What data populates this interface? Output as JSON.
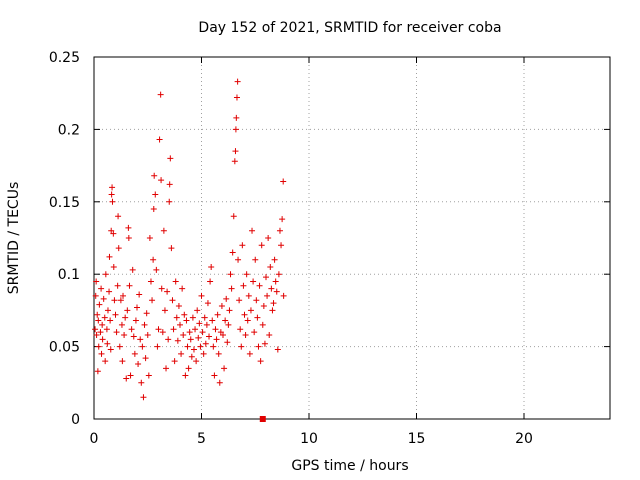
{
  "chart_data": {
    "type": "scatter",
    "title": "Day 152 of 2021, SRMTID for receiver coba",
    "xlabel": "GPS time / hours",
    "ylabel": "SRMTID / TECUs",
    "xlim": [
      0,
      24
    ],
    "ylim": [
      0,
      0.25
    ],
    "xticks": [
      0,
      5,
      10,
      15,
      20
    ],
    "xtick_labels": [
      "0",
      "5",
      "10",
      "15",
      "20"
    ],
    "yticks": [
      0,
      0.05,
      0.1,
      0.15,
      0.2,
      0.25
    ],
    "ytick_labels": [
      "0",
      "0.05",
      "0.1",
      "0.15",
      "0.2",
      "0.25"
    ],
    "grid": true,
    "legend": "none",
    "marker": "+",
    "color": "#e00000",
    "series": [
      {
        "name": "SRMTID",
        "points": [
          [
            0.05,
            0.062
          ],
          [
            0.08,
            0.085
          ],
          [
            0.1,
            0.095
          ],
          [
            0.12,
            0.058
          ],
          [
            0.15,
            0.072
          ],
          [
            0.18,
            0.033
          ],
          [
            0.2,
            0.068
          ],
          [
            0.22,
            0.05
          ],
          [
            0.25,
            0.079
          ],
          [
            0.3,
            0.06
          ],
          [
            0.33,
            0.09
          ],
          [
            0.35,
            0.045
          ],
          [
            0.38,
            0.065
          ],
          [
            0.4,
            0.055
          ],
          [
            0.45,
            0.083
          ],
          [
            0.5,
            0.07
          ],
          [
            0.52,
            0.04
          ],
          [
            0.55,
            0.1
          ],
          [
            0.6,
            0.062
          ],
          [
            0.62,
            0.052
          ],
          [
            0.65,
            0.075
          ],
          [
            0.7,
            0.088
          ],
          [
            0.72,
            0.112
          ],
          [
            0.75,
            0.068
          ],
          [
            0.78,
            0.048
          ],
          [
            0.8,
            0.13
          ],
          [
            0.82,
            0.155
          ],
          [
            0.84,
            0.16
          ],
          [
            0.86,
            0.15
          ],
          [
            0.9,
            0.128
          ],
          [
            0.92,
            0.105
          ],
          [
            0.95,
            0.082
          ],
          [
            1.0,
            0.072
          ],
          [
            1.05,
            0.06
          ],
          [
            1.1,
            0.092
          ],
          [
            1.12,
            0.14
          ],
          [
            1.15,
            0.118
          ],
          [
            1.2,
            0.05
          ],
          [
            1.25,
            0.082
          ],
          [
            1.3,
            0.065
          ],
          [
            1.32,
            0.04
          ],
          [
            1.35,
            0.085
          ],
          [
            1.4,
            0.058
          ],
          [
            1.45,
            0.07
          ],
          [
            1.5,
            0.028
          ],
          [
            1.55,
            0.075
          ],
          [
            1.6,
            0.132
          ],
          [
            1.62,
            0.125
          ],
          [
            1.65,
            0.092
          ],
          [
            1.7,
            0.03
          ],
          [
            1.75,
            0.062
          ],
          [
            1.8,
            0.103
          ],
          [
            1.85,
            0.057
          ],
          [
            1.9,
            0.045
          ],
          [
            1.95,
            0.068
          ],
          [
            2.0,
            0.077
          ],
          [
            2.05,
            0.038
          ],
          [
            2.1,
            0.086
          ],
          [
            2.15,
            0.055
          ],
          [
            2.2,
            0.025
          ],
          [
            2.25,
            0.05
          ],
          [
            2.3,
            0.015
          ],
          [
            2.35,
            0.065
          ],
          [
            2.4,
            0.042
          ],
          [
            2.45,
            0.073
          ],
          [
            2.5,
            0.058
          ],
          [
            2.55,
            0.03
          ],
          [
            2.6,
            0.125
          ],
          [
            2.65,
            0.095
          ],
          [
            2.7,
            0.082
          ],
          [
            2.75,
            0.11
          ],
          [
            2.78,
            0.145
          ],
          [
            2.8,
            0.168
          ],
          [
            2.85,
            0.155
          ],
          [
            2.9,
            0.103
          ],
          [
            2.95,
            0.05
          ],
          [
            3.0,
            0.062
          ],
          [
            3.05,
            0.193
          ],
          [
            3.1,
            0.224
          ],
          [
            3.12,
            0.165
          ],
          [
            3.15,
            0.09
          ],
          [
            3.2,
            0.06
          ],
          [
            3.25,
            0.13
          ],
          [
            3.3,
            0.075
          ],
          [
            3.35,
            0.035
          ],
          [
            3.4,
            0.088
          ],
          [
            3.45,
            0.055
          ],
          [
            3.5,
            0.15
          ],
          [
            3.52,
            0.162
          ],
          [
            3.55,
            0.18
          ],
          [
            3.6,
            0.118
          ],
          [
            3.65,
            0.082
          ],
          [
            3.7,
            0.062
          ],
          [
            3.75,
            0.04
          ],
          [
            3.8,
            0.095
          ],
          [
            3.85,
            0.07
          ],
          [
            3.9,
            0.054
          ],
          [
            3.95,
            0.078
          ],
          [
            4.0,
            0.065
          ],
          [
            4.05,
            0.045
          ],
          [
            4.1,
            0.09
          ],
          [
            4.15,
            0.058
          ],
          [
            4.2,
            0.072
          ],
          [
            4.25,
            0.03
          ],
          [
            4.3,
            0.068
          ],
          [
            4.35,
            0.05
          ],
          [
            4.4,
            0.035
          ],
          [
            4.45,
            0.06
          ],
          [
            4.5,
            0.055
          ],
          [
            4.55,
            0.043
          ],
          [
            4.6,
            0.07
          ],
          [
            4.65,
            0.048
          ],
          [
            4.7,
            0.062
          ],
          [
            4.75,
            0.04
          ],
          [
            4.8,
            0.075
          ],
          [
            4.85,
            0.056
          ],
          [
            4.9,
            0.066
          ],
          [
            4.95,
            0.05
          ],
          [
            5.0,
            0.085
          ],
          [
            5.05,
            0.06
          ],
          [
            5.1,
            0.045
          ],
          [
            5.15,
            0.07
          ],
          [
            5.2,
            0.052
          ],
          [
            5.25,
            0.065
          ],
          [
            5.3,
            0.08
          ],
          [
            5.35,
            0.057
          ],
          [
            5.4,
            0.095
          ],
          [
            5.45,
            0.105
          ],
          [
            5.5,
            0.068
          ],
          [
            5.55,
            0.05
          ],
          [
            5.6,
            0.03
          ],
          [
            5.65,
            0.062
          ],
          [
            5.7,
            0.055
          ],
          [
            5.75,
            0.072
          ],
          [
            5.8,
            0.045
          ],
          [
            5.85,
            0.025
          ],
          [
            5.9,
            0.06
          ],
          [
            5.95,
            0.078
          ],
          [
            6.0,
            0.058
          ],
          [
            6.05,
            0.035
          ],
          [
            6.1,
            0.068
          ],
          [
            6.15,
            0.083
          ],
          [
            6.2,
            0.053
          ],
          [
            6.25,
            0.065
          ],
          [
            6.3,
            0.075
          ],
          [
            6.35,
            0.1
          ],
          [
            6.4,
            0.09
          ],
          [
            6.45,
            0.115
          ],
          [
            6.5,
            0.14
          ],
          [
            6.55,
            0.178
          ],
          [
            6.58,
            0.185
          ],
          [
            6.6,
            0.2
          ],
          [
            6.62,
            0.208
          ],
          [
            6.65,
            0.222
          ],
          [
            6.68,
            0.233
          ],
          [
            6.7,
            0.11
          ],
          [
            6.75,
            0.082
          ],
          [
            6.8,
            0.062
          ],
          [
            6.85,
            0.05
          ],
          [
            6.9,
            0.12
          ],
          [
            6.95,
            0.092
          ],
          [
            7.0,
            0.072
          ],
          [
            7.05,
            0.058
          ],
          [
            7.1,
            0.1
          ],
          [
            7.15,
            0.068
          ],
          [
            7.2,
            0.085
          ],
          [
            7.25,
            0.045
          ],
          [
            7.3,
            0.075
          ],
          [
            7.35,
            0.13
          ],
          [
            7.4,
            0.095
          ],
          [
            7.45,
            0.06
          ],
          [
            7.5,
            0.11
          ],
          [
            7.55,
            0.082
          ],
          [
            7.6,
            0.07
          ],
          [
            7.65,
            0.05
          ],
          [
            7.7,
            0.092
          ],
          [
            7.75,
            0.04
          ],
          [
            7.8,
            0.12
          ],
          [
            7.85,
            0.065
          ],
          [
            7.9,
            0.078
          ],
          [
            7.95,
            0.052
          ],
          [
            8.0,
            0.098
          ],
          [
            8.05,
            0.085
          ],
          [
            8.1,
            0.125
          ],
          [
            8.15,
            0.058
          ],
          [
            8.2,
            0.105
          ],
          [
            8.25,
            0.09
          ],
          [
            8.3,
            0.075
          ],
          [
            8.35,
            0.08
          ],
          [
            8.4,
            0.11
          ],
          [
            8.45,
            0.095
          ],
          [
            8.5,
            0.088
          ],
          [
            8.55,
            0.048
          ],
          [
            8.6,
            0.1
          ],
          [
            8.65,
            0.13
          ],
          [
            8.7,
            0.12
          ],
          [
            8.75,
            0.138
          ],
          [
            8.8,
            0.164
          ],
          [
            8.82,
            0.085
          ]
        ]
      }
    ],
    "outlier_points": [
      [
        7.85,
        0.0
      ]
    ]
  }
}
